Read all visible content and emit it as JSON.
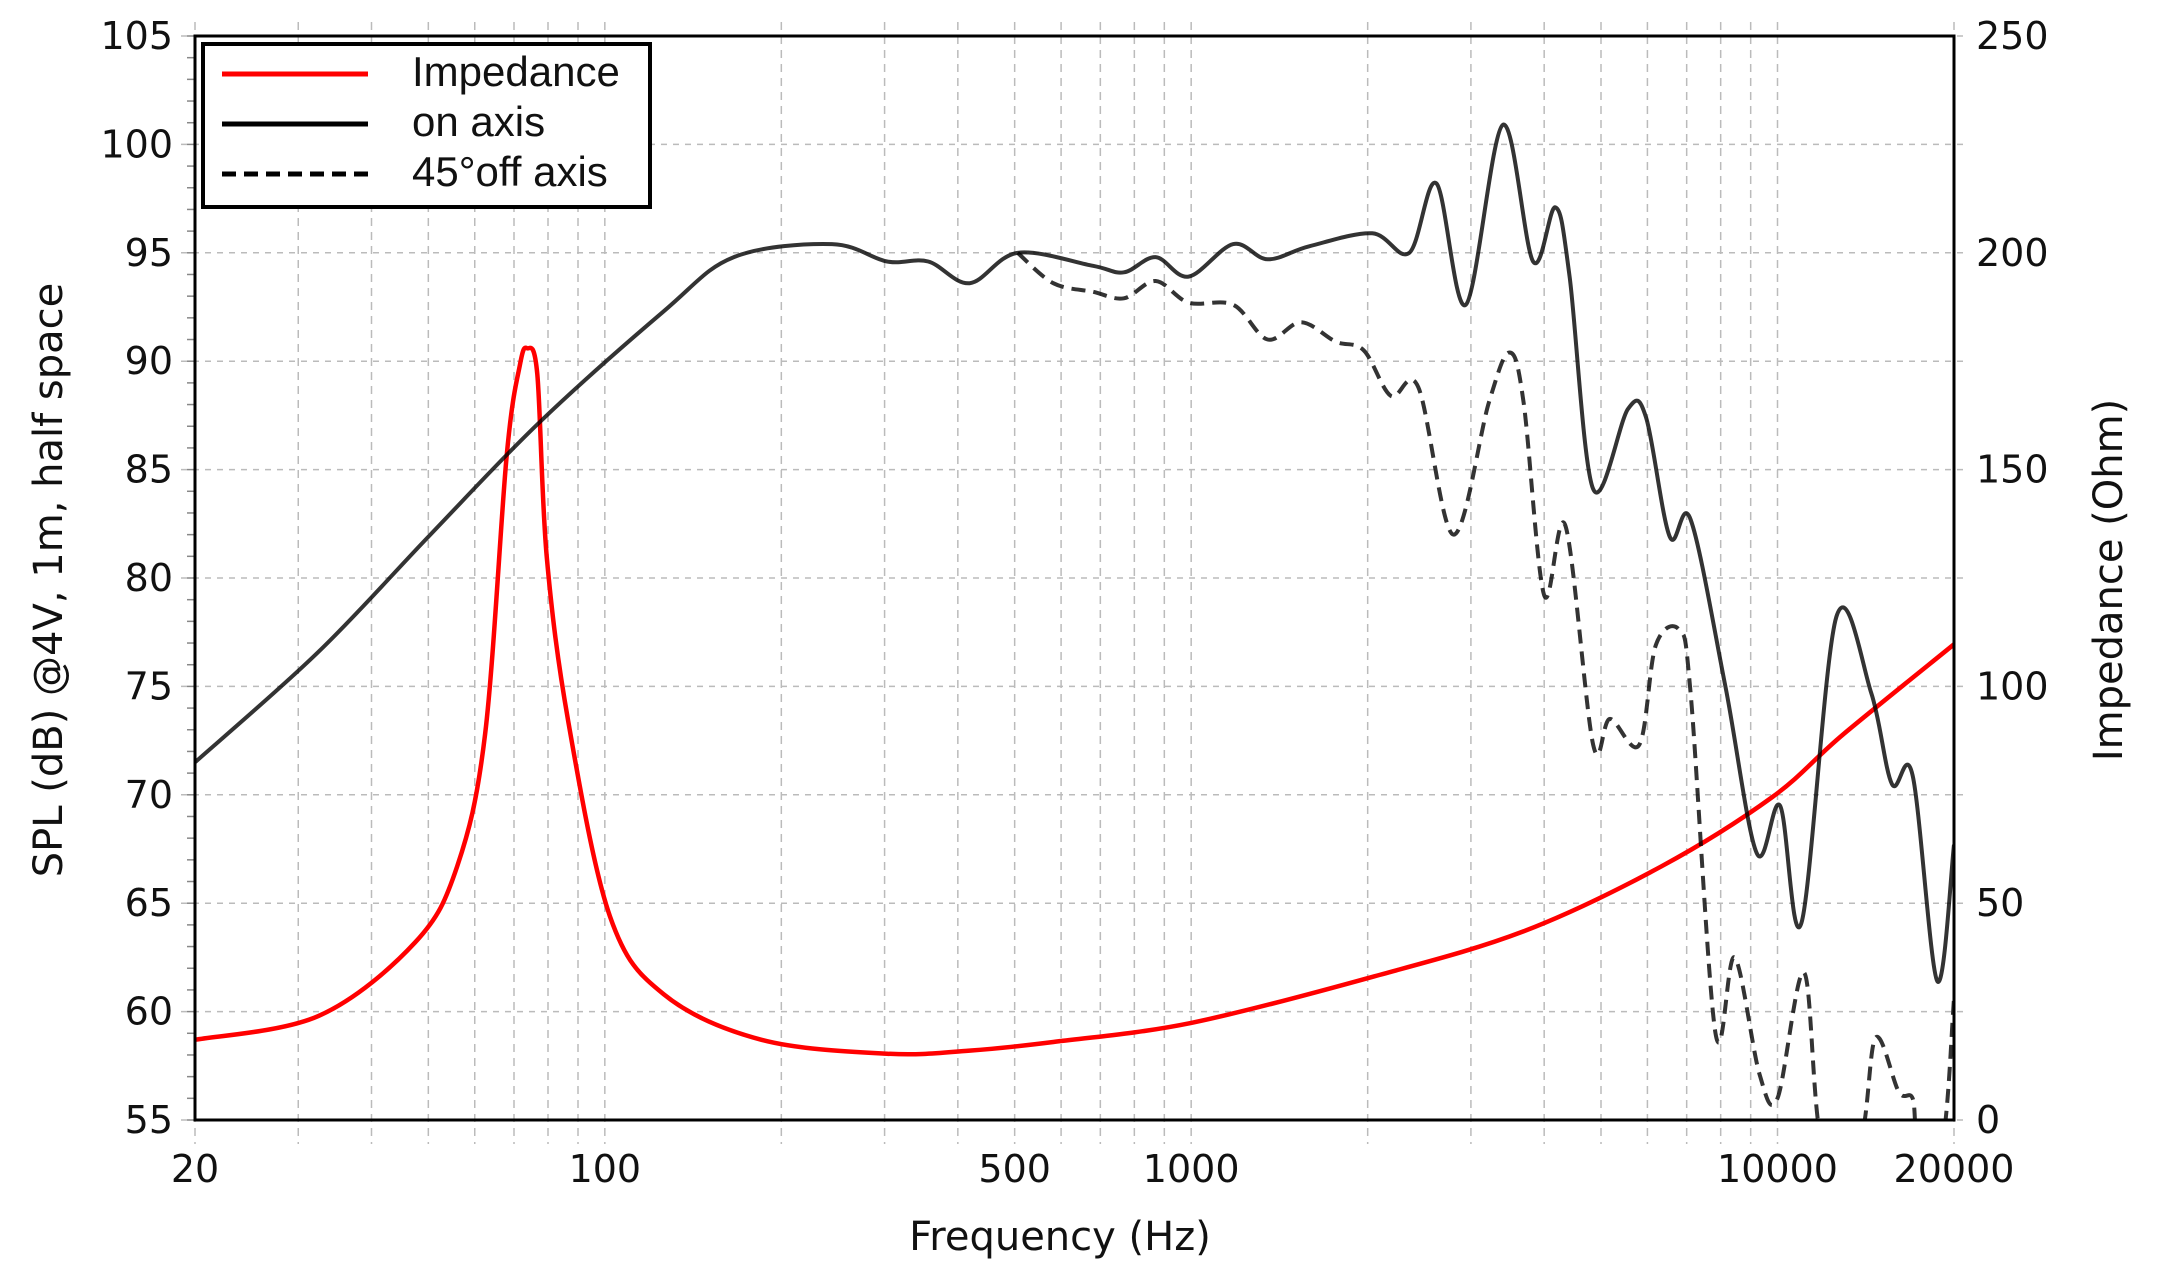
{
  "chart_data": {
    "type": "line",
    "xlabel": "Frequency (Hz)",
    "ylabel": "SPL (dB) @4V, 1m, half space",
    "y2label": "Impedance (Ohm)",
    "xscale": "log",
    "xlim": [
      20,
      20000
    ],
    "ylim": [
      55,
      105
    ],
    "y2lim": [
      0,
      250
    ],
    "grid": true,
    "legend_position": "top-left",
    "x_tick_labels": [
      "20",
      "100",
      "500",
      "1000",
      "10000",
      "20000"
    ],
    "x_ticks": [
      20,
      100,
      500,
      1000,
      10000,
      20000
    ],
    "y_ticks": [
      55,
      60,
      65,
      70,
      75,
      80,
      85,
      90,
      95,
      100,
      105
    ],
    "y_tick_labels": [
      "55",
      "60",
      "65",
      "70",
      "75",
      "80",
      "85",
      "90",
      "95",
      "100",
      "105"
    ],
    "y2_ticks": [
      0,
      50,
      100,
      150,
      200,
      250
    ],
    "y2_tick_labels": [
      "0",
      "50",
      "100",
      "150",
      "200",
      "250"
    ],
    "series": [
      {
        "name": "Impedance",
        "axis": "right",
        "color": "#ff0000",
        "style": "solid",
        "x": [
          20,
          32.5,
          47.5,
          56,
          62.5,
          68,
          71.6,
          73.7,
          76.7,
          79.6,
          86.6,
          102,
          126,
          185,
          303,
          419,
          582,
          1000,
          2036,
          3686,
          6340,
          9800,
          12960,
          20000
        ],
        "y": [
          18.5,
          24,
          41,
          58.5,
          89,
          153,
          174,
          178,
          172,
          130,
          92,
          47,
          29,
          18.5,
          15.3,
          16,
          18,
          22.4,
          33,
          43.5,
          58.5,
          74.5,
          89,
          109.7
        ]
      },
      {
        "name": "on axis",
        "axis": "left",
        "color": "#000000",
        "style": "solid",
        "x": [
          20,
          32.5,
          50.4,
          77.5,
          126,
          166,
          244,
          303,
          356,
          419,
          506,
          680,
          768,
          870,
          990,
          1180,
          1350,
          1590,
          2036,
          2355,
          2620,
          2940,
          3400,
          3830,
          4180,
          4420,
          4850,
          5560,
          5970,
          6550,
          7110,
          8150,
          9220,
          10100,
          10990,
          12600,
          14450,
          15670,
          17000,
          18730,
          20000
        ],
        "y": [
          71.5,
          76.6,
          82.0,
          87.2,
          92.3,
          94.8,
          95.4,
          94.6,
          94.6,
          93.6,
          95.0,
          94.4,
          94.1,
          94.8,
          93.9,
          95.4,
          94.7,
          95.3,
          95.9,
          95.0,
          98.2,
          92.6,
          100.9,
          94.6,
          97.1,
          93.9,
          84.1,
          87.8,
          87.4,
          81.9,
          82.7,
          75.0,
          67.3,
          69.5,
          64.1,
          78.2,
          74.7,
          70.5,
          70.9,
          61.4,
          67.7
        ]
      },
      {
        "name": "45°off axis",
        "axis": "left",
        "color": "#000000",
        "style": "dashed",
        "x": [
          506,
          582,
          680,
          768,
          870,
          990,
          1180,
          1350,
          1540,
          1765,
          1970,
          2190,
          2440,
          2800,
          3220,
          3490,
          3690,
          4000,
          4350,
          4850,
          5180,
          5810,
          6200,
          6800,
          7110,
          7840,
          8450,
          9320,
          10000,
          11100,
          11900,
          13800,
          14700,
          16100,
          17000,
          17400,
          19100,
          20000
        ],
        "y": [
          95.0,
          93.6,
          93.2,
          92.9,
          93.7,
          92.7,
          92.6,
          91.0,
          91.8,
          90.9,
          90.5,
          88.4,
          88.8,
          82.0,
          88.1,
          90.4,
          88.1,
          79.2,
          82.4,
          72.3,
          73.5,
          72.3,
          76.9,
          77.6,
          74.7,
          59.0,
          62.5,
          57.1,
          56.0,
          61.8,
          54,
          54,
          58.8,
          56.3,
          56.0,
          54,
          54,
          60.6
        ]
      }
    ]
  }
}
